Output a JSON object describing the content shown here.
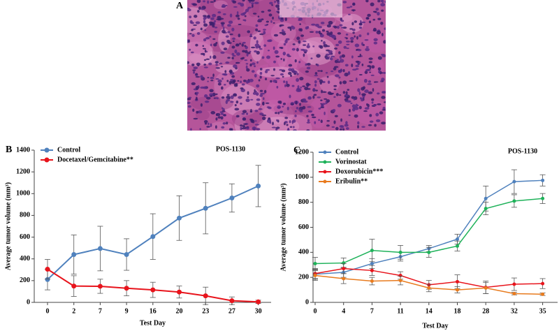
{
  "image_panel": {
    "label": "A"
  },
  "chart_data": [
    {
      "type": "line",
      "panel": "B",
      "title": "POS-1130",
      "x_label": "Test Day",
      "y_label": "Average tumor volume (mm³)",
      "categories": [
        "0",
        "2",
        "7",
        "9",
        "16",
        "20",
        "23",
        "27",
        "30"
      ],
      "ylim": [
        0,
        1400
      ],
      "yticks": [
        0,
        200,
        400,
        600,
        800,
        1000,
        1200,
        1400
      ],
      "legend": "upper left",
      "series": [
        {
          "name": "Control",
          "color": "#4f81bd",
          "values": [
            210,
            440,
            495,
            440,
            605,
            775,
            865,
            960,
            1070
          ],
          "errors": [
            95,
            180,
            205,
            145,
            210,
            205,
            235,
            130,
            190
          ]
        },
        {
          "name": "Docetaxel/Gemcitabine**",
          "color": "#e8141c",
          "values": [
            305,
            150,
            148,
            130,
            115,
            95,
            60,
            15,
            5
          ],
          "errors": [
            90,
            95,
            65,
            70,
            70,
            55,
            80,
            35,
            15
          ]
        }
      ]
    },
    {
      "type": "line",
      "panel": "C",
      "title": "POS-1130",
      "x_label": "Test Day",
      "y_label": "Average tumor volume (mm³)",
      "categories": [
        "0",
        "4",
        "7",
        "11",
        "14",
        "18",
        "28",
        "32",
        "35"
      ],
      "ylim": [
        0,
        1200
      ],
      "yticks": [
        0,
        200,
        400,
        600,
        800,
        1000,
        1200
      ],
      "legend": "upper left",
      "series": [
        {
          "name": "Control",
          "color": "#4f81bd",
          "values": [
            225,
            240,
            310,
            365,
            430,
            505,
            830,
            965,
            975
          ],
          "errors": [
            40,
            40,
            40,
            35,
            25,
            40,
            100,
            95,
            45
          ]
        },
        {
          "name": "Vorinostat",
          "color": "#1fb25a",
          "values": [
            310,
            315,
            415,
            400,
            400,
            450,
            750,
            810,
            830
          ],
          "errors": [
            50,
            40,
            90,
            55,
            40,
            40,
            50,
            50,
            40
          ]
        },
        {
          "name": "Doxorubicin***",
          "color": "#e8141c",
          "values": [
            230,
            270,
            255,
            215,
            140,
            165,
            120,
            145,
            150
          ],
          "errors": [
            40,
            40,
            40,
            30,
            35,
            55,
            50,
            50,
            40
          ]
        },
        {
          "name": "Eribulin**",
          "color": "#e87b1e",
          "values": [
            215,
            190,
            170,
            175,
            115,
            100,
            115,
            70,
            65
          ],
          "errors": [
            40,
            40,
            30,
            35,
            30,
            25,
            45,
            10,
            10
          ]
        }
      ]
    }
  ]
}
